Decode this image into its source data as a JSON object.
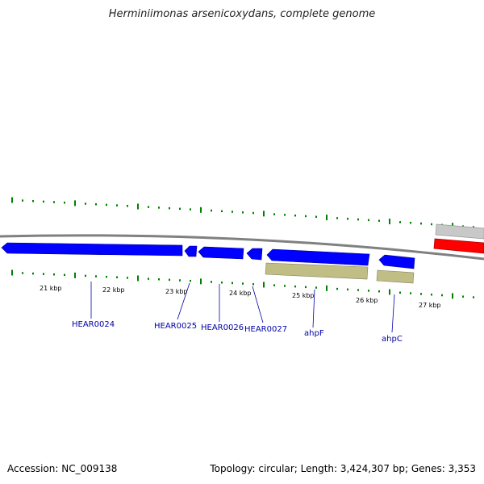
{
  "title": "Herminiimonas arsenicoxydans, complete genome",
  "footer": {
    "accession": "Accession: NC_009138",
    "summary": "Topology: circular; Length: 3,424,307 bp; Genes: 3,353"
  },
  "colors": {
    "cds": "#0000ff",
    "rna_feature": "#c0bd85",
    "grey_feature": "#c8c8c8",
    "red_feature": "#ff0000",
    "backbone": "#808080",
    "tick": "#008000",
    "label": "#0000aa"
  },
  "scale_labels": [
    "21 kbp",
    "22 kbp",
    "23 kbp",
    "24 kbp",
    "25 kbp",
    "26 kbp",
    "27 kbp"
  ],
  "gene_labels": [
    "HEAR0024",
    "HEAR0025",
    "HEAR0026",
    "HEAR0027",
    "ahpF",
    "ahpC"
  ]
}
